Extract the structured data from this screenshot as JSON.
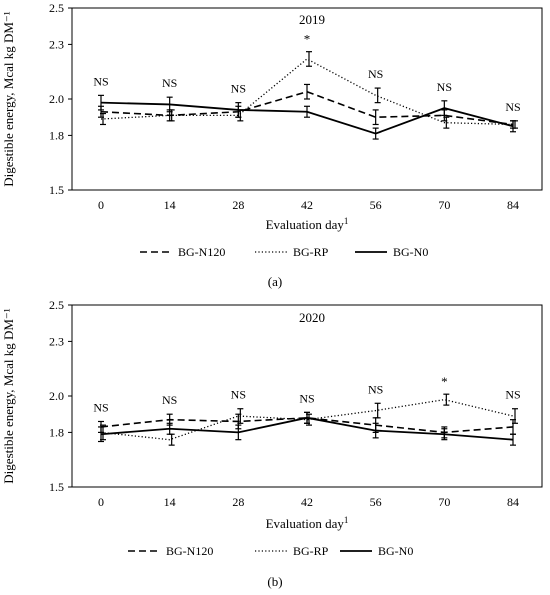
{
  "chart_data": [
    {
      "type": "line",
      "panel_label": "(a)",
      "title": "2019",
      "xlabel": "Evaluation day",
      "xlabel_superscript": "1",
      "ylabel": "Digestible energy,  Mcal kg DM⁻¹",
      "categories": [
        "0",
        "14",
        "28",
        "42",
        "56",
        "70",
        "84"
      ],
      "yticks": [
        "1.5",
        "1.8",
        "2.0",
        "2.3",
        "2.5"
      ],
      "ylim": [
        1.5,
        2.5
      ],
      "annotations": [
        "NS",
        "NS",
        "NS",
        "*",
        "NS",
        "NS",
        "NS"
      ],
      "series": [
        {
          "name": "BG-N120",
          "style": "dashed",
          "values": [
            1.93,
            1.91,
            1.93,
            2.04,
            1.9,
            1.91,
            1.86
          ],
          "errors": [
            0.03,
            0.03,
            0.03,
            0.04,
            0.04,
            0.03,
            0.02
          ]
        },
        {
          "name": "BG-RP",
          "style": "dotted",
          "values": [
            1.89,
            1.91,
            1.91,
            2.22,
            2.02,
            1.87,
            1.86
          ],
          "errors": [
            0.03,
            0.03,
            0.03,
            0.04,
            0.04,
            0.03,
            0.02
          ]
        },
        {
          "name": "BG-N0",
          "style": "solid",
          "values": [
            1.98,
            1.97,
            1.94,
            1.93,
            1.81,
            1.95,
            1.85
          ],
          "errors": [
            0.04,
            0.04,
            0.04,
            0.03,
            0.03,
            0.04,
            0.03
          ]
        }
      ]
    },
    {
      "type": "line",
      "panel_label": "(b)",
      "title": "2020",
      "xlabel": "Evaluation day",
      "xlabel_superscript": "1",
      "ylabel": "Digestible energy,  Mcal kg DM⁻¹",
      "categories": [
        "0",
        "14",
        "28",
        "42",
        "56",
        "70",
        "84"
      ],
      "yticks": [
        "1.5",
        "1.8",
        "2.0",
        "2.3",
        "2.5"
      ],
      "ylim": [
        1.5,
        2.5
      ],
      "annotations": [
        "NS",
        "NS",
        "NS",
        "NS",
        "NS",
        "*",
        "NS"
      ],
      "series": [
        {
          "name": "BG-N120",
          "style": "dashed",
          "values": [
            1.83,
            1.87,
            1.86,
            1.88,
            1.84,
            1.8,
            1.83
          ],
          "errors": [
            0.03,
            0.03,
            0.04,
            0.03,
            0.04,
            0.03,
            0.04
          ]
        },
        {
          "name": "BG-RP",
          "style": "dotted",
          "values": [
            1.8,
            1.76,
            1.89,
            1.87,
            1.92,
            1.98,
            1.89
          ],
          "errors": [
            0.04,
            0.03,
            0.04,
            0.03,
            0.04,
            0.03,
            0.04
          ]
        },
        {
          "name": "BG-N0",
          "style": "solid",
          "values": [
            1.79,
            1.82,
            1.8,
            1.88,
            1.81,
            1.79,
            1.76
          ],
          "errors": [
            0.04,
            0.03,
            0.04,
            0.03,
            0.04,
            0.03,
            0.03
          ]
        }
      ]
    }
  ]
}
